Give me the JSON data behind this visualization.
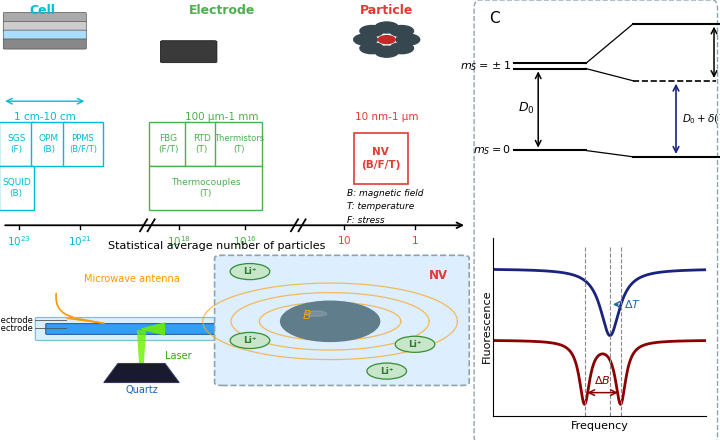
{
  "bg_color": "#ffffff",
  "cell_color": "#00bcd4",
  "electrode_color": "#4caf50",
  "particle_color": "#e53935",
  "dip_blue": "#1a237e",
  "dip_red": "#8b0000",
  "panel_C_label": "C",
  "cell_label": "Cell",
  "electrode_label": "Electrode",
  "particle_label": "Particle",
  "cell_size": "1 cm-10 cm",
  "electrode_size": "100 μm-1 mm",
  "particle_size": "10 nm-1 μm",
  "axis_label": "Statistical average number of particles",
  "legend_text": "B: magnetic field\nT: temperature\nF: stress",
  "fluorescence_label": "Fluorescence",
  "frequency_label": "Frequency",
  "microwave_label": "Microwave antenna",
  "laser_label": "Laser",
  "quartz_label": "Quartz",
  "nv_label": "NV",
  "B_label": "B",
  "counter_label": "nter electrode",
  "work_label": "rk electrode"
}
